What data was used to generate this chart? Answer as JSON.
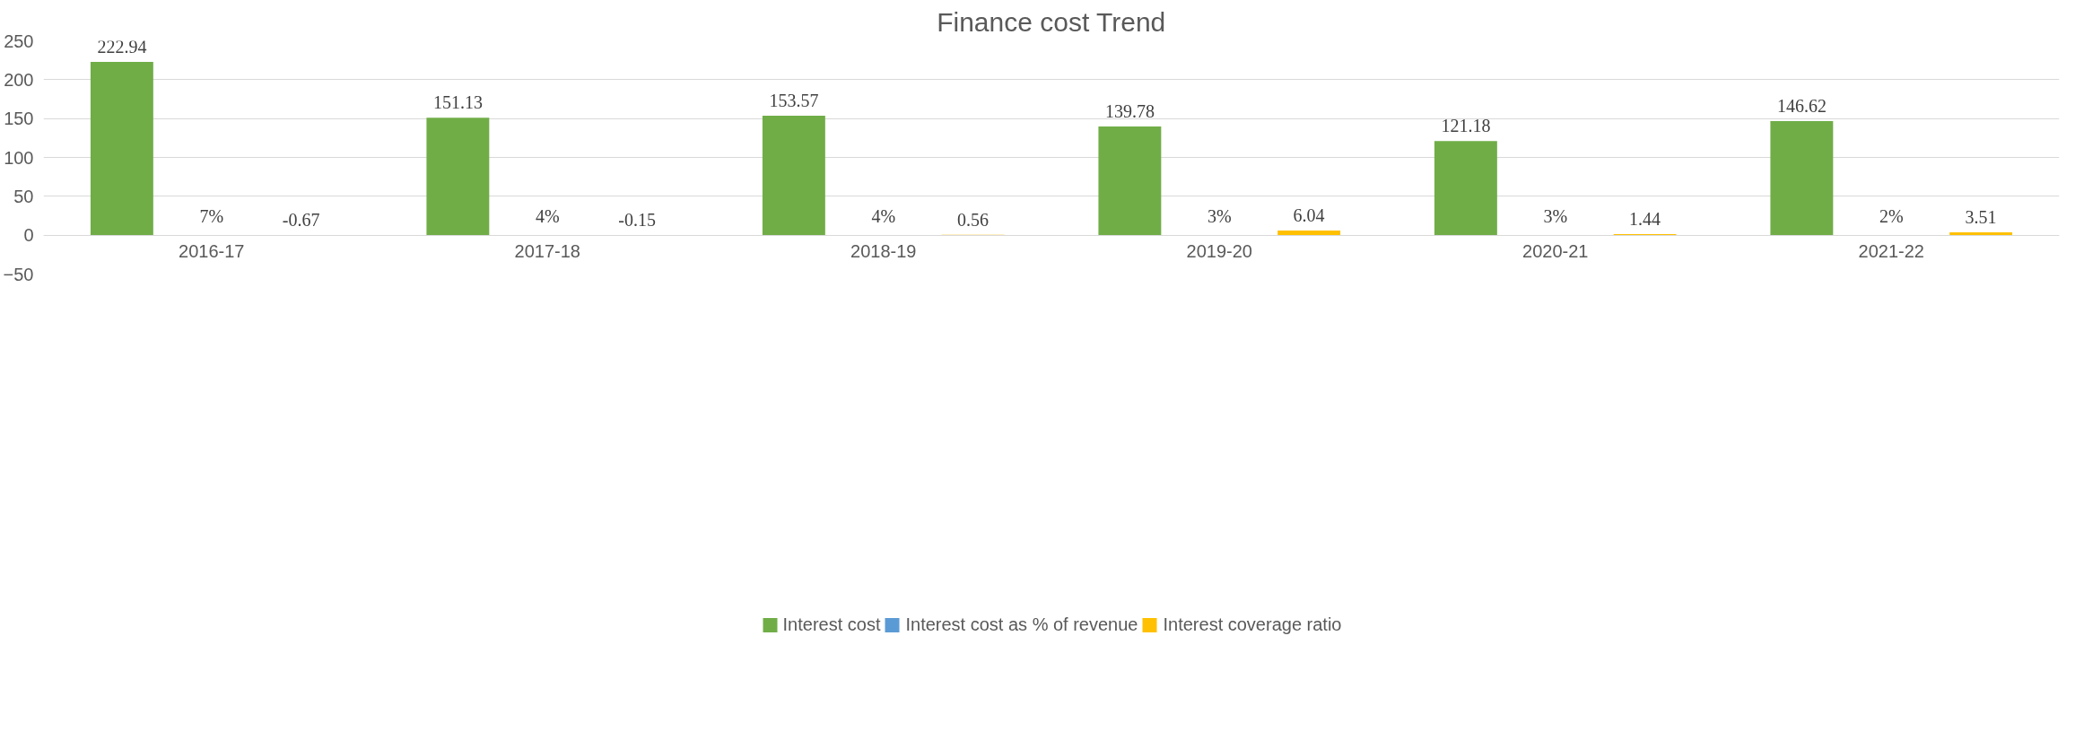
{
  "chart_data": {
    "type": "bar",
    "title": "Finance cost Trend",
    "categories": [
      "2016-17",
      "2017-18",
      "2018-19",
      "2019-20",
      "2020-21",
      "2021-22"
    ],
    "series": [
      {
        "name": "Interest cost",
        "color": "#70ad47",
        "values": [
          222.94,
          151.13,
          153.57,
          139.78,
          121.18,
          146.62
        ]
      },
      {
        "name": "Interest cost as % of revenue",
        "color": "#5b9bd5",
        "values": [
          0.07,
          0.04,
          0.04,
          0.03,
          0.03,
          0.02
        ],
        "value_labels": [
          "7%",
          "4%",
          "4%",
          "3%",
          "3%",
          "2%"
        ]
      },
      {
        "name": "Interest coverage ratio",
        "color": "#ffc000",
        "values": [
          -0.67,
          -0.15,
          0.56,
          6.04,
          1.44,
          3.51
        ]
      }
    ],
    "data_labels": true,
    "ylim": [
      -50,
      250
    ],
    "yticks": [
      -50,
      0,
      50,
      100,
      150,
      200,
      250
    ],
    "grid": "y",
    "legend": "bottom"
  }
}
